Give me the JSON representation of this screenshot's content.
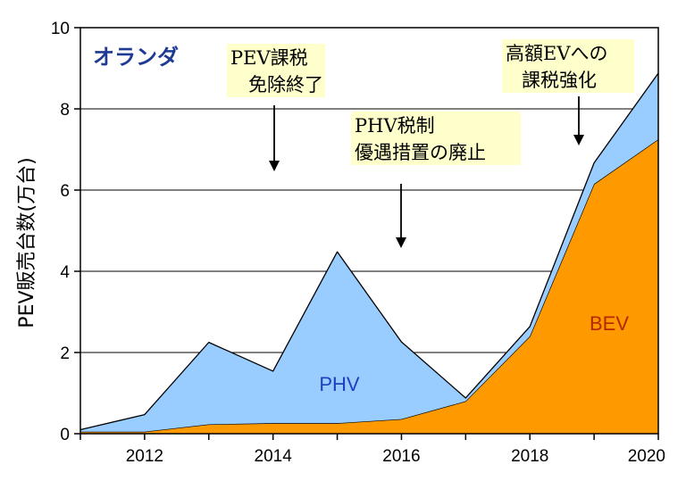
{
  "chart_data": {
    "type": "area",
    "stacked": true,
    "country_label": "オランダ",
    "ylabel": "PEV販売台数(万台)",
    "xlabel": "",
    "x": [
      2011,
      2012,
      2013,
      2014,
      2015,
      2016,
      2017,
      2018,
      2019,
      2020
    ],
    "xlim": [
      2011,
      2020
    ],
    "xticks": [
      2012,
      2014,
      2016,
      2018,
      2020
    ],
    "ylim": [
      0,
      10
    ],
    "yticks": [
      0,
      2,
      4,
      6,
      8,
      10
    ],
    "grid": true,
    "series": [
      {
        "name": "BEV",
        "values": [
          0.05,
          0.05,
          0.23,
          0.26,
          0.26,
          0.36,
          0.8,
          2.4,
          6.15,
          7.25
        ],
        "color": "#ff9900",
        "label_color": "#b42800"
      },
      {
        "name": "PHV",
        "values": [
          0.05,
          0.42,
          2.02,
          1.28,
          4.22,
          1.9,
          0.08,
          0.24,
          0.52,
          1.63
        ],
        "color": "#99ccff",
        "label_color": "#1f3fbf"
      }
    ],
    "annotations": [
      {
        "id": "pev-tax",
        "lines": [
          "PEV課税",
          "免除終了"
        ]
      },
      {
        "id": "phv-tax",
        "lines": [
          "PHV税制",
          "優遇措置の廃止"
        ]
      },
      {
        "id": "ev-tax",
        "lines": [
          "高額EVへの",
          "課税強化"
        ]
      }
    ]
  }
}
